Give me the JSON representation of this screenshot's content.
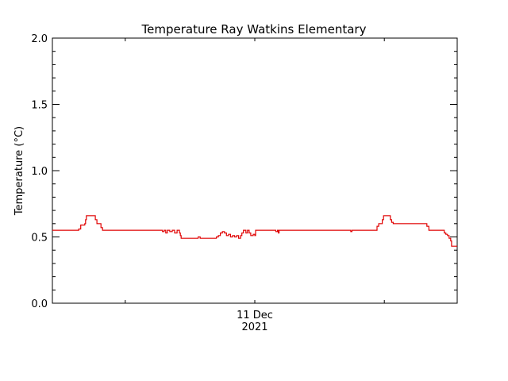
{
  "chart_data": {
    "type": "line",
    "title": "Temperature Ray Watkins Elementary",
    "ylabel": "Temperature (°C)",
    "xlabel": "",
    "ylim": [
      0.0,
      2.0
    ],
    "xlim": [
      0,
      1
    ],
    "y_ticks": [
      "0.0",
      "0.5",
      "1.0",
      "1.5",
      "2.0"
    ],
    "x_tick_labels": [
      {
        "line1": "11 Dec",
        "line2": "2021",
        "x": 0.5
      }
    ],
    "grid": false,
    "line_color": "#e00000",
    "series": [
      {
        "values": [
          [
            0.0,
            0.55
          ],
          [
            0.055,
            0.55
          ],
          [
            0.065,
            0.56
          ],
          [
            0.07,
            0.59
          ],
          [
            0.08,
            0.6
          ],
          [
            0.082,
            0.63
          ],
          [
            0.084,
            0.66
          ],
          [
            0.104,
            0.66
          ],
          [
            0.106,
            0.63
          ],
          [
            0.11,
            0.6
          ],
          [
            0.118,
            0.6
          ],
          [
            0.12,
            0.57
          ],
          [
            0.124,
            0.55
          ],
          [
            0.27,
            0.55
          ],
          [
            0.272,
            0.54
          ],
          [
            0.276,
            0.55
          ],
          [
            0.28,
            0.53
          ],
          [
            0.284,
            0.55
          ],
          [
            0.29,
            0.54
          ],
          [
            0.296,
            0.55
          ],
          [
            0.302,
            0.53
          ],
          [
            0.308,
            0.55
          ],
          [
            0.314,
            0.53
          ],
          [
            0.316,
            0.51
          ],
          [
            0.318,
            0.49
          ],
          [
            0.356,
            0.49
          ],
          [
            0.36,
            0.5
          ],
          [
            0.365,
            0.49
          ],
          [
            0.4,
            0.49
          ],
          [
            0.405,
            0.5
          ],
          [
            0.41,
            0.51
          ],
          [
            0.415,
            0.53
          ],
          [
            0.42,
            0.54
          ],
          [
            0.425,
            0.53
          ],
          [
            0.43,
            0.51
          ],
          [
            0.435,
            0.52
          ],
          [
            0.44,
            0.5
          ],
          [
            0.445,
            0.51
          ],
          [
            0.45,
            0.5
          ],
          [
            0.455,
            0.51
          ],
          [
            0.46,
            0.49
          ],
          [
            0.465,
            0.51
          ],
          [
            0.468,
            0.53
          ],
          [
            0.472,
            0.55
          ],
          [
            0.478,
            0.53
          ],
          [
            0.482,
            0.55
          ],
          [
            0.486,
            0.53
          ],
          [
            0.49,
            0.51
          ],
          [
            0.496,
            0.52
          ],
          [
            0.5,
            0.51
          ],
          [
            0.502,
            0.55
          ],
          [
            0.55,
            0.55
          ],
          [
            0.552,
            0.54
          ],
          [
            0.556,
            0.55
          ],
          [
            0.558,
            0.53
          ],
          [
            0.56,
            0.55
          ],
          [
            0.735,
            0.55
          ],
          [
            0.737,
            0.54
          ],
          [
            0.74,
            0.55
          ],
          [
            0.8,
            0.55
          ],
          [
            0.802,
            0.58
          ],
          [
            0.806,
            0.6
          ],
          [
            0.812,
            0.6
          ],
          [
            0.815,
            0.63
          ],
          [
            0.818,
            0.66
          ],
          [
            0.832,
            0.66
          ],
          [
            0.835,
            0.63
          ],
          [
            0.838,
            0.61
          ],
          [
            0.842,
            0.6
          ],
          [
            0.92,
            0.6
          ],
          [
            0.925,
            0.58
          ],
          [
            0.93,
            0.55
          ],
          [
            0.965,
            0.55
          ],
          [
            0.968,
            0.53
          ],
          [
            0.972,
            0.52
          ],
          [
            0.976,
            0.51
          ],
          [
            0.98,
            0.49
          ],
          [
            0.984,
            0.47
          ],
          [
            0.986,
            0.43
          ],
          [
            1.0,
            0.43
          ]
        ]
      }
    ]
  }
}
